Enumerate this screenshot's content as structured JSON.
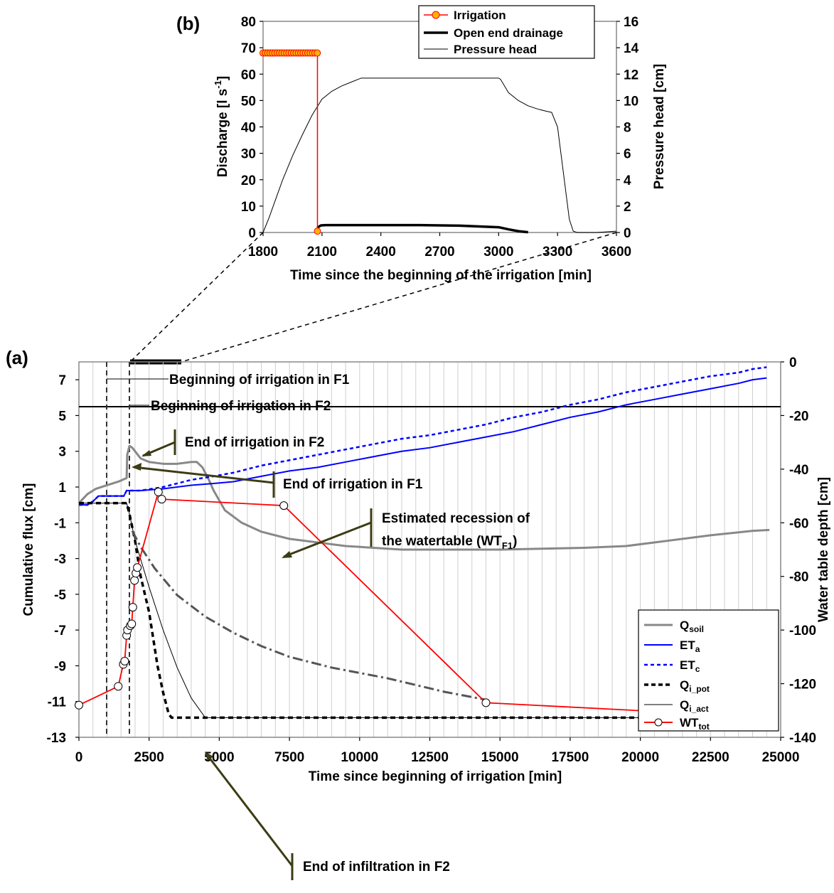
{
  "chart_data": [
    {
      "panel": "(b)",
      "type": "line",
      "xlabel": "Time since the beginning of the irrigation [min]",
      "ylabel": "Discharge [l s-1]",
      "ylabel_parts": {
        "main": "Discharge [l s",
        "sup": "-1",
        "end": "]"
      },
      "y2label": "Pressure head [cm]",
      "xlim": [
        1800,
        3600
      ],
      "ylim": [
        0,
        80
      ],
      "y2lim": [
        0,
        16
      ],
      "xticks": [
        "1800",
        "2100",
        "2400",
        "2700",
        "3000",
        "3300",
        "3600"
      ],
      "yticks": [
        "0",
        "10",
        "20",
        "30",
        "40",
        "50",
        "60",
        "70",
        "80"
      ],
      "y2ticks": [
        "0",
        "2",
        "4",
        "6",
        "8",
        "10",
        "12",
        "14",
        "16"
      ],
      "legend_position": "top-right",
      "series": [
        {
          "name": "Irrigation",
          "axis": "left",
          "color": "#ff0000",
          "marker": "#ffb400",
          "x": [
            1800,
            1812,
            1824,
            1836,
            1848,
            1860,
            1872,
            1884,
            1896,
            1908,
            1920,
            1932,
            1944,
            1956,
            1968,
            1980,
            1992,
            2004,
            2016,
            2028,
            2040,
            2052,
            2064,
            2076
          ],
          "y": [
            68,
            68,
            68,
            68,
            68,
            68,
            68,
            68,
            68,
            68,
            68,
            68,
            68,
            68,
            68,
            68,
            68,
            68,
            68,
            68,
            68,
            68,
            68,
            68
          ],
          "end_drop": {
            "x": 2077,
            "y": 0.5
          }
        },
        {
          "name": "Open end drainage",
          "axis": "left",
          "color": "#000000",
          "x": [
            2075,
            2080,
            2095,
            2120,
            2300,
            2600,
            2800,
            2900,
            3000,
            3050,
            3100,
            3150
          ],
          "y": [
            0.5,
            2.0,
            2.7,
            2.8,
            2.8,
            2.8,
            2.6,
            2.3,
            2.0,
            1.2,
            0.5,
            0.1
          ]
        },
        {
          "name": "Pressure head",
          "axis": "right",
          "color": "#000000",
          "x": [
            1800,
            1830,
            1900,
            1950,
            2000,
            2050,
            2100,
            2150,
            2200,
            2250,
            2300,
            2400,
            2500,
            3000,
            3010,
            3050,
            3100,
            3150,
            3200,
            3240,
            3270,
            3300,
            3330,
            3360,
            3380,
            3400,
            3450,
            3500,
            3600
          ],
          "y": [
            0,
            1.1,
            4.0,
            5.8,
            7.4,
            8.9,
            10.1,
            10.7,
            11.1,
            11.4,
            11.7,
            11.7,
            11.7,
            11.7,
            11.6,
            10.6,
            10.0,
            9.6,
            9.35,
            9.2,
            9.1,
            8.0,
            4.5,
            1.0,
            0.1,
            0,
            0,
            0,
            0.1
          ]
        }
      ]
    },
    {
      "panel": "(a)",
      "type": "line",
      "xlabel": "Time since beginning of irrigation [min]",
      "ylabel": "Cumulative flux [cm]",
      "y2label": "Water table depth [cm]",
      "xlim": [
        0,
        25000
      ],
      "ylim": [
        -13,
        8
      ],
      "y2lim": [
        -140,
        0
      ],
      "xticks": [
        "0",
        "2500",
        "5000",
        "7500",
        "10000",
        "12500",
        "15000",
        "17500",
        "20000",
        "22500",
        "25000"
      ],
      "yticks": [
        "-13",
        "-11",
        "-9",
        "-7",
        "-5",
        "-3",
        "-1",
        "1",
        "3",
        "5",
        "7"
      ],
      "y2ticks": [
        "-140",
        "-120",
        "-100",
        "-80",
        "-60",
        "-40",
        "-20",
        "0"
      ],
      "grid": "vertical minor",
      "legend_position": "bottom-right",
      "series": [
        {
          "name": "Qsoil",
          "sub": "soil",
          "base": "Q",
          "axis": "left",
          "color": "#888888",
          "x": [
            0,
            300,
            600,
            1000,
            1400,
            1700,
            1720,
            1800,
            1900,
            2000,
            2200,
            2500,
            3000,
            3500,
            4000,
            4200,
            4400,
            4600,
            4800,
            5200,
            5800,
            6500,
            7500,
            8500,
            9500,
            10500,
            11500,
            12500,
            14000,
            15000,
            16500,
            18000,
            19500,
            21000,
            22500,
            24000,
            24600
          ],
          "y": [
            0.1,
            0.6,
            0.9,
            1.1,
            1.3,
            1.5,
            2.8,
            3.3,
            3.2,
            3.0,
            2.6,
            2.4,
            2.3,
            2.3,
            2.4,
            2.4,
            2.1,
            1.5,
            0.8,
            -0.3,
            -1.0,
            -1.5,
            -1.9,
            -2.1,
            -2.3,
            -2.4,
            -2.5,
            -2.5,
            -2.5,
            -2.5,
            -2.45,
            -2.4,
            -2.3,
            -2.0,
            -1.7,
            -1.45,
            -1.4
          ]
        },
        {
          "name": "ETa",
          "sub": "a",
          "base": "ET",
          "axis": "left",
          "color": "#0000ff",
          "x": [
            0,
            300,
            500,
            700,
            1000,
            1500,
            1600,
            1700,
            2000,
            2200,
            2600,
            3000,
            3500,
            4000,
            4800,
            5500,
            6500,
            7500,
            8500,
            9500,
            10500,
            11500,
            12500,
            13500,
            14500,
            15500,
            16500,
            17500,
            18500,
            19500,
            20500,
            21500,
            22500,
            23500,
            24000,
            24500
          ],
          "y": [
            0,
            0,
            0.2,
            0.5,
            0.5,
            0.5,
            0.5,
            0.8,
            0.8,
            0.8,
            0.85,
            0.9,
            1.0,
            1.1,
            1.2,
            1.3,
            1.6,
            1.9,
            2.1,
            2.4,
            2.7,
            3.0,
            3.2,
            3.5,
            3.8,
            4.1,
            4.5,
            4.9,
            5.2,
            5.6,
            5.9,
            6.2,
            6.5,
            6.8,
            7.0,
            7.1
          ]
        },
        {
          "name": "ETc",
          "sub": "c",
          "base": "ET",
          "axis": "left",
          "color": "#0000ff",
          "dash": "5,4",
          "x": [
            0,
            300,
            500,
            700,
            1000,
            1500,
            1600,
            1700,
            2000,
            2200,
            2600,
            3000,
            3500,
            4000,
            4800,
            5500,
            6500,
            7500,
            8500,
            9500,
            10500,
            11500,
            12500,
            13500,
            14500,
            15500,
            16500,
            17500,
            18500,
            19500,
            20500,
            21500,
            22500,
            23500,
            24000,
            24500
          ],
          "y": [
            0,
            0,
            0.2,
            0.5,
            0.5,
            0.5,
            0.5,
            0.8,
            0.8,
            0.8,
            0.9,
            1.0,
            1.2,
            1.4,
            1.6,
            1.8,
            2.2,
            2.5,
            2.8,
            3.1,
            3.4,
            3.7,
            3.9,
            4.2,
            4.5,
            4.9,
            5.2,
            5.6,
            5.9,
            6.3,
            6.6,
            6.9,
            7.2,
            7.4,
            7.6,
            7.7
          ]
        },
        {
          "name": "Qi_pot",
          "sub": "i_pot",
          "base": "Q",
          "axis": "left",
          "color": "#000000",
          "dash": "7,5",
          "x": [
            0,
            1000,
            1700,
            1800,
            2000,
            2200,
            2500,
            2800,
            3000,
            3200,
            3300,
            3500,
            5000,
            10000,
            15000,
            20000,
            24500
          ],
          "y": [
            0.1,
            0.1,
            0.1,
            -0.5,
            -2.0,
            -4.0,
            -6.0,
            -9.0,
            -10.5,
            -11.7,
            -11.9,
            -11.9,
            -11.9,
            -11.9,
            -11.9,
            -11.9,
            -11.9
          ]
        },
        {
          "name": "Qi_act",
          "sub": "i_act",
          "base": "Q",
          "axis": "left",
          "color": "#000000",
          "x": [
            0,
            1000,
            1700,
            1800,
            2000,
            2500,
            3000,
            3500,
            4000,
            4500,
            5000,
            10000,
            15000,
            20000,
            24500
          ],
          "y": [
            0.1,
            0.1,
            0.1,
            -0.5,
            -2.0,
            -4.6,
            -7.0,
            -9.1,
            -10.8,
            -11.9,
            -11.9,
            -11.9,
            -11.9,
            -11.9,
            -11.9
          ]
        },
        {
          "name": "WTF1 estimated recession",
          "axis": "right",
          "color": "#555555",
          "dash": "14,5,3,5",
          "legend": false,
          "x": [
            1900,
            2200,
            2700,
            3500,
            4500,
            5500,
            6500,
            7500,
            9000,
            11000,
            13000,
            14500
          ],
          "y": [
            -63,
            -69,
            -77,
            -87,
            -95,
            -101,
            -106,
            -110,
            -114,
            -118,
            -123,
            -126
          ]
        },
        {
          "name": "WTtot",
          "sub": "tot",
          "base": "WT",
          "axis": "right",
          "color": "#ff0000",
          "marker": "#ffffff",
          "x": [
            0,
            1400,
            1580,
            1630,
            1700,
            1730,
            1830,
            1880,
            1920,
            1980,
            2030,
            2080,
            2830,
            2950,
            7300,
            14500,
            21700,
            24600
          ],
          "y": [
            -128,
            -121,
            -112.8,
            -111.6,
            -102,
            -100,
            -98.4,
            -97.7,
            -91.5,
            -81.5,
            -78.8,
            -76.7,
            -48.5,
            -51.2,
            -53.6,
            -127.1,
            -131.0,
            -132.3
          ],
          "points_x": [
            0,
            1400,
            1580,
            1630,
            1700,
            1730,
            1830,
            1880,
            1920,
            1980,
            2030,
            2080,
            2830,
            2950,
            7300,
            14500,
            21700,
            24600
          ],
          "points_y": [
            -128,
            -121,
            -112.8,
            -111.6,
            -102,
            -100,
            -98.4,
            -97.7,
            -91.5,
            -81.5,
            -78.8,
            -76.7,
            -48.5,
            -51.2,
            -53.6,
            -127.1,
            -131.0,
            -132.3
          ]
        }
      ],
      "vertical_lines": [
        1000,
        1800
      ],
      "annotations": [
        {
          "text": "Beginning  of  irrigation in F1"
        },
        {
          "text": "Beginning of irrigation in F2"
        },
        {
          "text": "End of irrigation in F2"
        },
        {
          "text": "End of irrigation in F1"
        },
        {
          "text": "Estimated recession of"
        },
        {
          "text": "the watertable (WT",
          "sub": "F1",
          "end": ")"
        },
        {
          "text": "End of infiltration in F2"
        }
      ]
    }
  ]
}
